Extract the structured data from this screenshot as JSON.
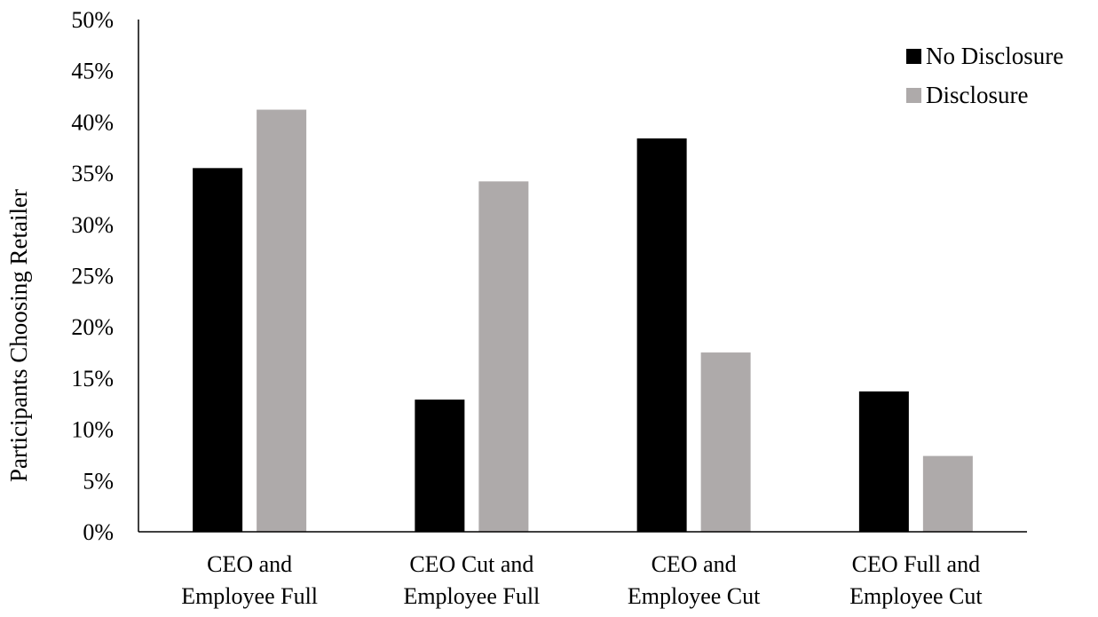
{
  "chart_data": {
    "type": "bar",
    "title": "",
    "xlabel": "",
    "ylabel": "Participants Choosing Retailer",
    "ylim": [
      0,
      0.5
    ],
    "yticks": [
      0,
      0.05,
      0.1,
      0.15,
      0.2,
      0.25,
      0.3,
      0.35,
      0.4,
      0.45,
      0.5
    ],
    "ytick_labels": [
      "0%",
      "5%",
      "10%",
      "15%",
      "20%",
      "25%",
      "30%",
      "35%",
      "40%",
      "45%",
      "50%"
    ],
    "grid": false,
    "legend_position": "top-right",
    "categories": [
      [
        "CEO and",
        "Employee Full"
      ],
      [
        "CEO Cut and",
        "Employee Full"
      ],
      [
        "CEO and",
        "Employee Cut"
      ],
      [
        "CEO Full and",
        "Employee Cut"
      ]
    ],
    "series": [
      {
        "name": "No Disclosure",
        "color": "#000000",
        "values": [
          0.355,
          0.129,
          0.384,
          0.137
        ]
      },
      {
        "name": "Disclosure",
        "color": "#aeaaaa",
        "values": [
          0.412,
          0.342,
          0.175,
          0.074
        ]
      }
    ]
  }
}
